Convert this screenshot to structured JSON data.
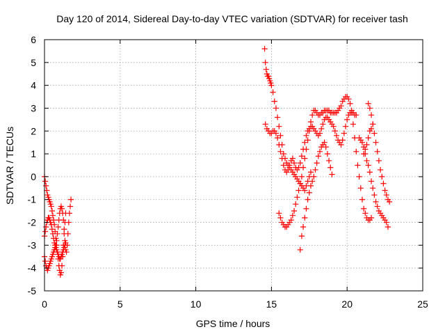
{
  "chart_data": {
    "type": "scatter",
    "title": "Day 120 of 2014, Sidereal Day-to-day VTEC variation (SDTVAR) for receiver tash",
    "xlabel": "GPS time / hours",
    "ylabel": "SDTVAR / TECUs",
    "xlim": [
      0,
      25
    ],
    "ylim": [
      -5,
      6
    ],
    "xticks": [
      "0",
      "5",
      "10",
      "15",
      "20",
      "25"
    ],
    "yticks": [
      "-5",
      "-4",
      "-3",
      "-2",
      "-1",
      "0",
      "1",
      "2",
      "3",
      "4",
      "5",
      "6"
    ],
    "grid": true,
    "marker": "plus",
    "color": "#ff0000",
    "series": [
      {
        "name": "SDTVAR",
        "x": [
          0.0,
          0.05,
          0.1,
          0.15,
          0.2,
          0.25,
          0.3,
          0.35,
          0.4,
          0.45,
          0.5,
          0.55,
          0.6,
          0.65,
          0.7,
          0.75,
          0.8,
          0.85,
          0.9,
          0.95,
          1.0,
          1.05,
          1.1,
          1.15,
          1.2,
          1.25,
          1.3,
          1.35,
          1.4,
          0.0,
          0.05,
          0.1,
          0.15,
          0.2,
          0.25,
          0.3,
          0.35,
          0.4,
          0.45,
          0.5,
          0.55,
          0.6,
          0.65,
          0.7,
          0.75,
          0.8,
          0.85,
          0.9,
          0.95,
          1.0,
          1.05,
          1.1,
          1.15,
          1.2,
          1.25,
          1.3,
          1.35,
          1.4,
          0.0,
          0.05,
          0.1,
          0.15,
          0.2,
          0.25,
          0.3,
          0.35,
          0.4,
          0.45,
          0.5,
          0.55,
          0.6,
          0.65,
          0.7,
          0.75,
          0.8,
          0.85,
          0.9,
          0.95,
          1.0,
          1.05,
          1.1,
          1.15,
          1.2,
          1.25,
          1.3,
          1.35,
          1.4,
          1.45,
          1.5,
          1.55,
          1.6,
          1.65,
          1.7,
          1.75,
          14.55,
          14.6,
          14.65,
          14.7,
          14.75,
          14.8,
          14.85,
          14.9,
          14.95,
          15.0,
          15.1,
          15.2,
          15.3,
          15.4,
          15.5,
          15.6,
          15.7,
          15.8,
          15.9,
          16.0,
          16.1,
          16.2,
          16.3,
          16.4,
          16.5,
          16.6,
          16.7,
          16.8,
          16.9,
          17.0,
          17.1,
          17.2,
          17.3,
          17.4,
          17.5,
          17.6,
          14.6,
          14.7,
          14.8,
          14.9,
          15.0,
          15.1,
          15.2,
          15.3,
          15.4,
          15.5,
          15.6,
          15.7,
          15.8,
          15.9,
          16.0,
          16.1,
          16.2,
          16.3,
          16.4,
          16.5,
          16.6,
          16.7,
          16.8,
          16.9,
          17.0,
          17.1,
          17.2,
          17.3,
          17.4,
          17.5,
          17.6,
          17.7,
          17.8,
          17.9,
          18.0,
          18.1,
          18.2,
          18.3,
          18.4,
          18.5,
          18.6,
          18.7,
          18.8,
          18.9,
          19.0,
          19.1,
          19.2,
          19.3,
          19.4,
          19.5,
          19.6,
          19.7,
          19.8,
          19.9,
          20.0,
          20.1,
          20.2,
          20.3,
          20.4,
          20.5,
          20.6,
          15.5,
          15.6,
          15.7,
          15.8,
          15.9,
          16.0,
          16.1,
          16.2,
          16.3,
          16.4,
          16.5,
          16.6,
          16.7,
          16.8,
          16.9,
          17.0,
          17.1,
          17.2,
          17.3,
          17.4,
          17.5,
          17.6,
          17.7,
          17.8,
          17.9,
          18.0,
          18.1,
          18.2,
          18.3,
          18.4,
          18.5,
          18.6,
          18.7,
          18.8,
          18.9,
          19.0,
          19.1,
          19.2,
          19.3,
          19.4,
          19.5,
          19.6,
          19.7,
          19.8,
          19.9,
          20.0,
          20.1,
          20.2,
          20.3,
          20.4,
          20.5,
          20.6,
          20.7,
          20.8,
          20.9,
          21.0,
          21.1,
          21.2,
          21.3,
          21.4,
          21.5,
          21.6,
          16.9,
          17.0,
          17.1,
          17.2,
          17.3,
          17.4,
          17.5,
          17.6,
          17.7,
          17.8,
          17.9,
          18.0,
          18.1,
          18.2,
          18.3,
          18.4,
          18.5,
          18.6,
          18.7,
          18.8,
          18.9,
          19.0,
          20.8,
          20.9,
          21.0,
          21.1,
          21.2,
          21.3,
          21.4,
          21.5,
          21.6,
          21.7,
          21.8,
          21.9,
          22.0,
          22.1,
          22.2,
          22.3,
          22.4,
          22.5,
          22.6,
          22.7,
          21.4,
          21.5,
          21.6,
          21.7,
          21.8,
          21.9,
          22.0,
          22.1,
          22.2,
          22.3,
          22.4,
          22.5,
          22.6,
          22.7,
          22.8,
          21.1,
          21.2,
          21.3,
          21.4,
          21.5,
          21.6,
          21.7
        ],
        "y": [
          0.0,
          -0.2,
          -0.4,
          -0.6,
          -0.8,
          -0.9,
          -1.0,
          -1.1,
          -1.2,
          -1.3,
          -1.5,
          -1.7,
          -1.9,
          -2.1,
          -2.4,
          -2.7,
          -3.0,
          -3.3,
          -3.6,
          -3.9,
          -4.1,
          -4.3,
          -4.2,
          -3.9,
          -3.5,
          -3.0,
          -2.5,
          -2.0,
          -1.6,
          -2.6,
          -2.4,
          -2.2,
          -2.0,
          -1.9,
          -1.8,
          -1.8,
          -1.9,
          -2.0,
          -2.1,
          -2.3,
          -2.5,
          -2.7,
          -2.9,
          -3.0,
          -3.1,
          -3.2,
          -3.3,
          -3.4,
          -3.5,
          -3.6,
          -3.6,
          -3.5,
          -3.4,
          -3.3,
          -3.2,
          -3.1,
          -3.0,
          -2.9,
          -3.5,
          -3.7,
          -3.9,
          -4.0,
          -4.1,
          -4.0,
          -3.9,
          -3.8,
          -3.7,
          -3.6,
          -3.5,
          -3.4,
          -3.3,
          -3.2,
          -3.1,
          -3.0,
          -2.8,
          -2.5,
          -2.2,
          -1.9,
          -1.6,
          -1.4,
          -1.3,
          -1.4,
          -1.6,
          -1.9,
          -2.3,
          -2.8,
          -3.2,
          -3.3,
          -3.0,
          -2.5,
          -2.0,
          -1.6,
          -1.3,
          -1.0,
          5.6,
          5.0,
          4.7,
          4.5,
          4.4,
          4.4,
          4.3,
          4.2,
          4.1,
          4.0,
          3.7,
          3.3,
          3.0,
          2.6,
          2.2,
          1.8,
          1.4,
          1.0,
          0.8,
          0.6,
          0.5,
          0.4,
          0.3,
          0.2,
          0.1,
          0.0,
          -0.1,
          -0.2,
          -0.3,
          -0.4,
          -0.5,
          -0.6,
          -0.4,
          -0.2,
          0.0,
          0.2,
          2.3,
          2.1,
          2.0,
          1.9,
          1.9,
          2.0,
          2.0,
          1.9,
          1.7,
          1.4,
          1.1,
          0.8,
          0.5,
          0.3,
          0.2,
          0.3,
          0.5,
          0.7,
          0.8,
          0.6,
          0.4,
          0.3,
          0.4,
          0.6,
          0.9,
          1.2,
          1.5,
          1.8,
          2.0,
          2.1,
          2.2,
          2.2,
          2.1,
          2.0,
          1.9,
          1.8,
          1.9,
          2.1,
          2.3,
          2.5,
          2.6,
          2.6,
          2.5,
          2.4,
          2.3,
          2.2,
          2.0,
          1.8,
          1.6,
          1.5,
          1.4,
          1.6,
          1.9,
          2.2,
          2.5,
          2.7,
          2.8,
          2.9,
          2.8,
          2.7,
          2.7,
          -1.6,
          -1.8,
          -2.0,
          -2.1,
          -2.2,
          -2.2,
          -2.1,
          -2.0,
          -1.9,
          -1.7,
          -1.5,
          -1.2,
          -0.9,
          -0.6,
          -0.3,
          0.0,
          0.4,
          0.8,
          1.2,
          1.6,
          2.0,
          2.4,
          2.7,
          2.9,
          2.9,
          2.8,
          2.7,
          2.7,
          2.8,
          2.8,
          2.9,
          2.9,
          2.9,
          2.9,
          2.8,
          2.8,
          2.8,
          2.8,
          2.8,
          2.9,
          3.0,
          3.1,
          3.3,
          3.4,
          3.5,
          3.5,
          3.4,
          3.2,
          2.8,
          2.3,
          1.7,
          1.1,
          0.5,
          0.0,
          -0.5,
          -1.0,
          -1.4,
          -1.6,
          -1.8,
          -1.9,
          -1.9,
          -1.8,
          -3.2,
          -2.6,
          -2.2,
          -1.8,
          -1.4,
          -1.0,
          -0.7,
          -0.4,
          -0.2,
          0.0,
          0.3,
          0.6,
          0.9,
          1.1,
          1.3,
          1.4,
          1.5,
          1.3,
          1.0,
          0.7,
          0.4,
          0.1,
          1.7,
          1.6,
          1.5,
          1.3,
          1.0,
          0.7,
          0.5,
          0.2,
          -0.2,
          -0.5,
          -0.8,
          -1.1,
          -1.3,
          -1.5,
          -1.6,
          -1.7,
          -1.8,
          -1.9,
          -2.0,
          -2.2,
          3.2,
          3.0,
          2.7,
          2.3,
          1.9,
          1.5,
          1.1,
          0.7,
          0.3,
          0.0,
          -0.3,
          -0.6,
          -0.8,
          -1.0,
          -1.1,
          1.0,
          1.2,
          1.4,
          1.7,
          2.0,
          2.1,
          2.3
        ]
      }
    ]
  }
}
